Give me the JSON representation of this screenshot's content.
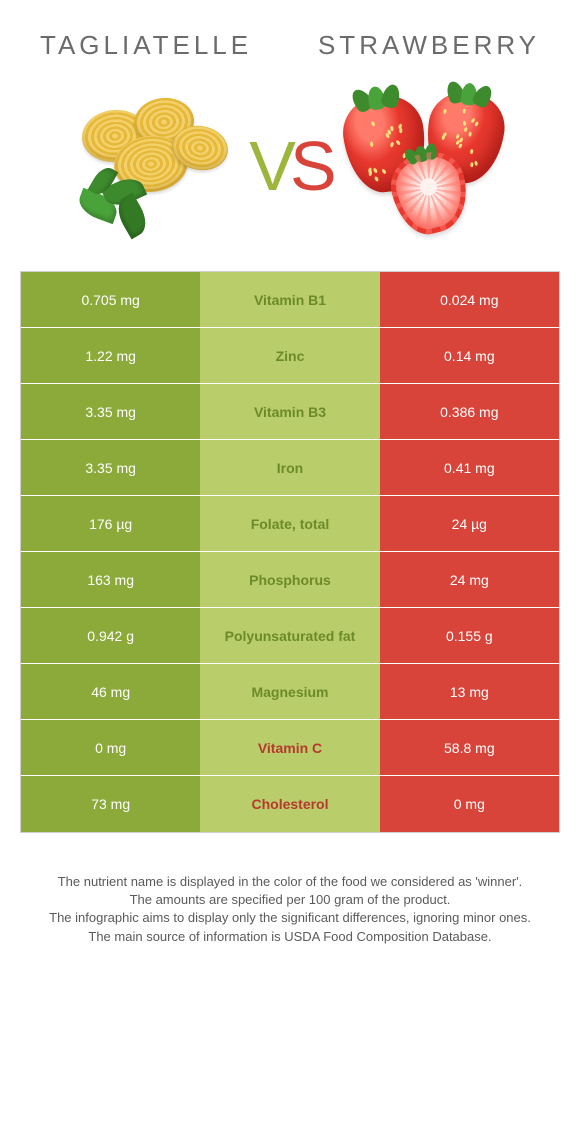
{
  "header": {
    "left": "TAGLIATELLE",
    "right": "STRAWBERRY"
  },
  "palette": {
    "left_color": "#8baa3a",
    "mid_color": "#b9ce6a",
    "right_color": "#d9443a",
    "mid_text_left_win": "#6d8a2a",
    "mid_text_right_win": "#b8382f"
  },
  "vs": {
    "v": "V",
    "s": "S"
  },
  "rows": [
    {
      "nutrient": "Vitamin B1",
      "left": "0.705 mg",
      "right": "0.024 mg",
      "winner": "left"
    },
    {
      "nutrient": "Zinc",
      "left": "1.22 mg",
      "right": "0.14 mg",
      "winner": "left"
    },
    {
      "nutrient": "Vitamin B3",
      "left": "3.35 mg",
      "right": "0.386 mg",
      "winner": "left"
    },
    {
      "nutrient": "Iron",
      "left": "3.35 mg",
      "right": "0.41 mg",
      "winner": "left"
    },
    {
      "nutrient": "Folate, total",
      "left": "176 µg",
      "right": "24 µg",
      "winner": "left"
    },
    {
      "nutrient": "Phosphorus",
      "left": "163 mg",
      "right": "24 mg",
      "winner": "left"
    },
    {
      "nutrient": "Polyunsaturated fat",
      "left": "0.942 g",
      "right": "0.155 g",
      "winner": "left"
    },
    {
      "nutrient": "Magnesium",
      "left": "46 mg",
      "right": "13 mg",
      "winner": "left"
    },
    {
      "nutrient": "Vitamin C",
      "left": "0 mg",
      "right": "58.8 mg",
      "winner": "right"
    },
    {
      "nutrient": "Cholesterol",
      "left": "73 mg",
      "right": "0 mg",
      "winner": "right"
    }
  ],
  "footnotes": [
    "The nutrient name is displayed in the color of the food we considered as 'winner'.",
    "The amounts are specified per 100 gram of the product.",
    "The infographic aims to display only the significant differences, ignoring minor ones.",
    "The main source of information is USDA Food Composition Database."
  ]
}
